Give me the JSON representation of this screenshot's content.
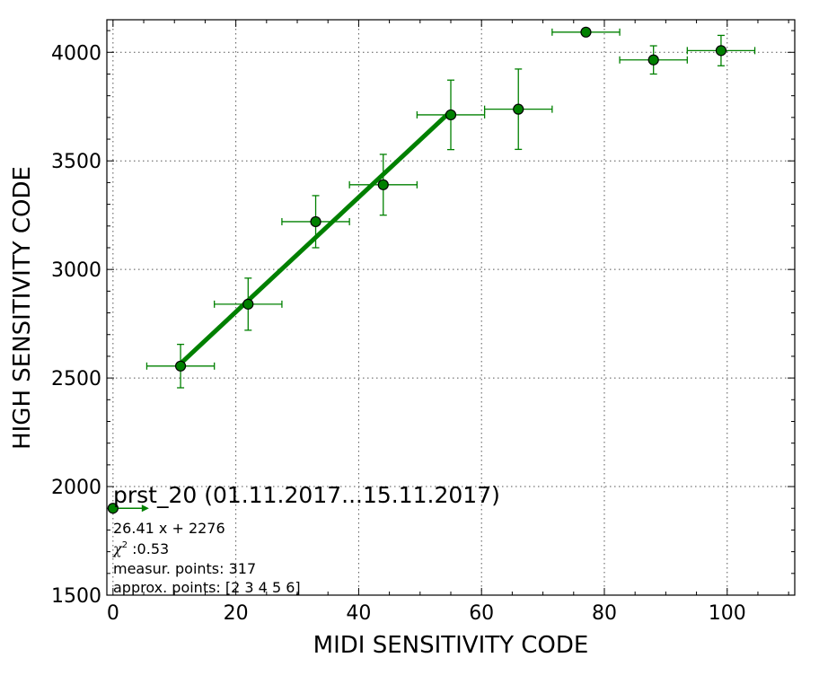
{
  "chart_data": {
    "type": "scatter",
    "title": "prst_20 (01.11.2017...15.11.2017)",
    "xlabel": "MIDI SENSITIVITY CODE",
    "ylabel": "HIGH SENSITIVITY CODE",
    "xlim": [
      -1,
      111
    ],
    "ylim": [
      1500,
      4150
    ],
    "xticks": [
      "0",
      "20",
      "40",
      "60",
      "80",
      "100"
    ],
    "yticks": [
      "1500",
      "2000",
      "2500",
      "3000",
      "3500",
      "4000"
    ],
    "grid": true,
    "colors": {
      "series": "#008000",
      "marker_edge": "#000000"
    },
    "points": [
      {
        "x": 0,
        "y": 1900,
        "xerr": 0,
        "yerr": 0
      },
      {
        "x": 11,
        "y": 2555,
        "xerr": 5.5,
        "yerr": 100
      },
      {
        "x": 22,
        "y": 2840,
        "xerr": 5.5,
        "yerr": 120
      },
      {
        "x": 33,
        "y": 3220,
        "xerr": 5.5,
        "yerr": 120
      },
      {
        "x": 44,
        "y": 3390,
        "xerr": 5.5,
        "yerr": 140
      },
      {
        "x": 55,
        "y": 3712,
        "xerr": 5.5,
        "yerr": 160
      },
      {
        "x": 66,
        "y": 3738,
        "xerr": 5.5,
        "yerr": 185
      },
      {
        "x": 77,
        "y": 4093,
        "xerr": 5.5,
        "yerr": 0
      },
      {
        "x": 88,
        "y": 3965,
        "xerr": 5.5,
        "yerr": 65
      },
      {
        "x": 99,
        "y": 4008,
        "xerr": 5.5,
        "yerr": 70
      }
    ],
    "fit": {
      "slope": 26.41,
      "intercept": 2276,
      "x_range": [
        11,
        55
      ]
    },
    "annotations": {
      "equation": "26.41 x + 2276",
      "chi2_symbol": "χ",
      "chi2_sup": "2",
      "chi2_value": " :0.53",
      "measur_points": "measur. points: 317",
      "approx_points": "approx. points: [2 3 4 5 6]"
    }
  }
}
